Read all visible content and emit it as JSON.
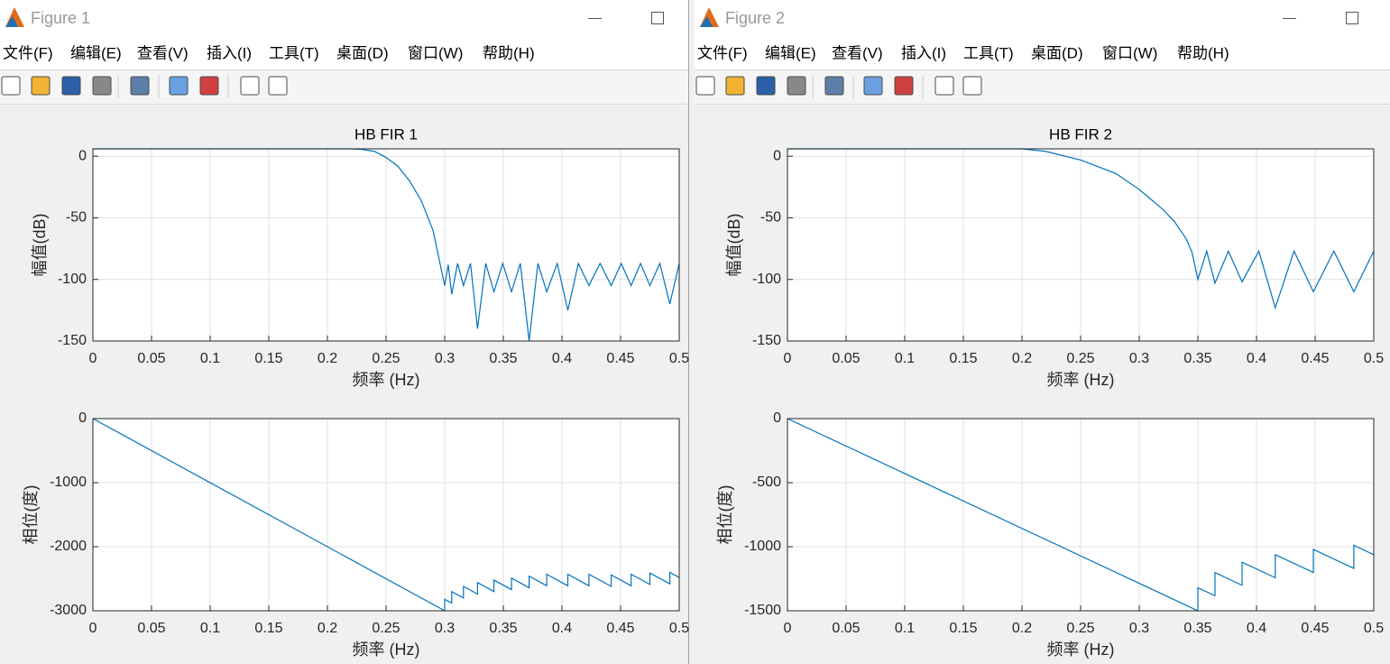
{
  "windows": [
    {
      "title": "Figure 1",
      "menu": [
        "文件(F)",
        "编辑(E)",
        "查看(V)",
        "插入(I)",
        "工具(T)",
        "桌面(D)",
        "窗口(W)",
        "帮助(H)"
      ]
    },
    {
      "title": "Figure 2",
      "menu": [
        "文件(F)",
        "编辑(E)",
        "查看(V)",
        "插入(I)",
        "工具(T)",
        "桌面(D)",
        "窗口(W)",
        "帮助(H)"
      ]
    }
  ],
  "chart_data": [
    {
      "type": "line",
      "title": "HB FIR 1",
      "x_label": "频率 (Hz)",
      "y_label": "幅值(dB)",
      "xlim": [
        0,
        0.5
      ],
      "xticks": [
        0,
        0.05,
        0.1,
        0.15,
        0.2,
        0.25,
        0.3,
        0.35,
        0.4,
        0.45,
        0.5
      ],
      "ylim": [
        -150,
        6
      ],
      "yticks": [
        -150,
        -100,
        -50,
        0
      ],
      "grid": true,
      "x": [
        0,
        0.05,
        0.1,
        0.15,
        0.2,
        0.22,
        0.23,
        0.24,
        0.25,
        0.26,
        0.27,
        0.28,
        0.29,
        0.3,
        0.303,
        0.306,
        0.311,
        0.316,
        0.322,
        0.328,
        0.335,
        0.342,
        0.3495,
        0.357,
        0.3645,
        0.372,
        0.3795,
        0.387,
        0.396,
        0.405,
        0.414,
        0.423,
        0.4325,
        0.442,
        0.4505,
        0.459,
        0.467,
        0.475,
        0.4835,
        0.492,
        0.5
      ],
      "series": [
        {
          "color": "#0072bd",
          "values": [
            6,
            6,
            6,
            6,
            6,
            6,
            5.5,
            4,
            -1,
            -8,
            -20,
            -36,
            -60,
            -105,
            -88,
            -112,
            -87,
            -105,
            -87,
            -140,
            -87,
            -110,
            -87,
            -110,
            -87,
            -150,
            -87,
            -110,
            -87,
            -125,
            -87,
            -105,
            -87,
            -105,
            -87,
            -105,
            -87,
            -105,
            -87,
            -120,
            -87
          ]
        }
      ]
    },
    {
      "type": "line",
      "x_label": "频率 (Hz)",
      "y_label": "相位(度)",
      "xlim": [
        0,
        0.5
      ],
      "xticks": [
        0,
        0.05,
        0.1,
        0.15,
        0.2,
        0.25,
        0.3,
        0.35,
        0.4,
        0.45,
        0.5
      ],
      "ylim": [
        -3000,
        0
      ],
      "yticks": [
        -3000,
        -2000,
        -1000,
        0
      ],
      "grid": true,
      "x": [
        0,
        0.3,
        0.3,
        0.306,
        0.306,
        0.316,
        0.316,
        0.328,
        0.328,
        0.342,
        0.342,
        0.357,
        0.357,
        0.372,
        0.372,
        0.387,
        0.387,
        0.405,
        0.405,
        0.423,
        0.423,
        0.442,
        0.442,
        0.459,
        0.459,
        0.475,
        0.475,
        0.492,
        0.492,
        0.5
      ],
      "series": [
        {
          "color": "#0072bd",
          "values": [
            0,
            -3000,
            -2820,
            -2880,
            -2700,
            -2800,
            -2620,
            -2740,
            -2560,
            -2700,
            -2520,
            -2670,
            -2490,
            -2640,
            -2460,
            -2610,
            -2430,
            -2610,
            -2430,
            -2610,
            -2430,
            -2620,
            -2440,
            -2610,
            -2430,
            -2590,
            -2410,
            -2580,
            -2400,
            -2480
          ]
        }
      ]
    },
    {
      "type": "line",
      "title": "HB FIR 2",
      "x_label": "频率 (Hz)",
      "y_label": "幅值(dB)",
      "xlim": [
        0,
        0.5
      ],
      "xticks": [
        0,
        0.05,
        0.1,
        0.15,
        0.2,
        0.25,
        0.3,
        0.35,
        0.4,
        0.45,
        0.5
      ],
      "ylim": [
        -150,
        6
      ],
      "yticks": [
        -150,
        -100,
        -50,
        0
      ],
      "grid": true,
      "x": [
        0,
        0.05,
        0.1,
        0.15,
        0.2,
        0.22,
        0.25,
        0.28,
        0.3,
        0.32,
        0.33,
        0.34,
        0.345,
        0.35,
        0.3575,
        0.3646,
        0.376,
        0.3877,
        0.402,
        0.416,
        0.432,
        0.4485,
        0.466,
        0.483,
        0.5
      ],
      "series": [
        {
          "color": "#0072bd",
          "values": [
            6,
            6,
            6,
            6,
            6,
            4,
            -3,
            -14,
            -27,
            -43,
            -53,
            -67,
            -78,
            -100,
            -77,
            -103,
            -77,
            -102,
            -77,
            -123,
            -77,
            -110,
            -77,
            -110,
            -77
          ]
        }
      ]
    },
    {
      "type": "line",
      "x_label": "频率 (Hz)",
      "y_label": "相位(度)",
      "xlim": [
        0,
        0.5
      ],
      "xticks": [
        0,
        0.05,
        0.1,
        0.15,
        0.2,
        0.25,
        0.3,
        0.35,
        0.4,
        0.45,
        0.5
      ],
      "ylim": [
        -1500,
        0
      ],
      "yticks": [
        -1500,
        -1000,
        -500,
        0
      ],
      "grid": true,
      "x": [
        0,
        0.35,
        0.35,
        0.3646,
        0.3646,
        0.3877,
        0.3877,
        0.416,
        0.416,
        0.4485,
        0.4485,
        0.483,
        0.483,
        0.5
      ],
      "series": [
        {
          "color": "#0072bd",
          "values": [
            0,
            -1500,
            -1320,
            -1382,
            -1202,
            -1301,
            -1121,
            -1242,
            -1062,
            -1201,
            -1021,
            -1169,
            -989,
            -1062
          ]
        }
      ]
    }
  ]
}
